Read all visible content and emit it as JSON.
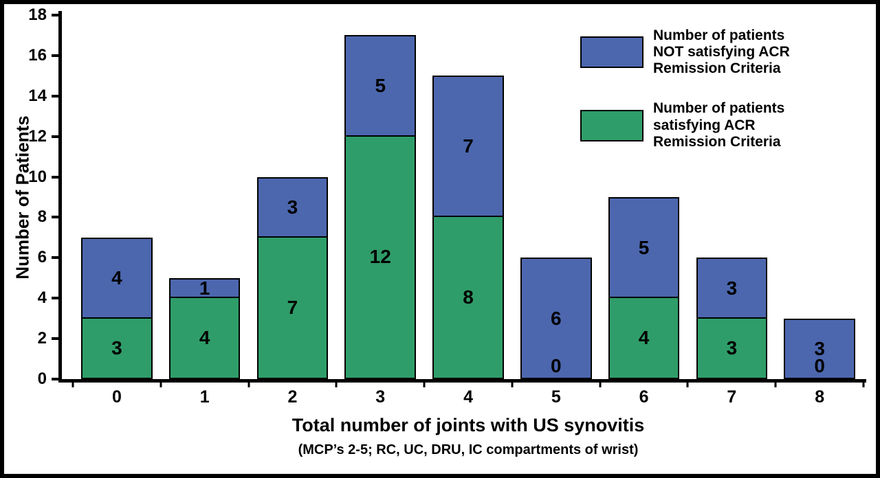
{
  "chart_data": {
    "type": "bar",
    "stacked": true,
    "categories": [
      "0",
      "1",
      "2",
      "3",
      "4",
      "5",
      "6",
      "7",
      "8"
    ],
    "series": [
      {
        "name": "Number of patients satisfying ACR Remission Criteria",
        "color": "#2f9d69",
        "values": [
          3,
          4,
          7,
          12,
          8,
          0,
          4,
          3,
          0
        ]
      },
      {
        "name": "Number of patients NOT satisfying ACR Remission Criteria",
        "color": "#4c67ae",
        "values": [
          4,
          1,
          3,
          5,
          7,
          6,
          5,
          3,
          3
        ]
      }
    ],
    "totals": [
      7,
      5,
      10,
      17,
      15,
      6,
      9,
      6,
      3
    ],
    "ylabel": "Number of Patients",
    "xlabel": "Total number of joints with US synovitis",
    "xlabel_note": "(MCP’s 2-5; RC, UC, DRU, IC compartments of wrist)",
    "ylim": [
      0,
      18
    ],
    "yticks": [
      0,
      2,
      4,
      6,
      8,
      10,
      12,
      14,
      16,
      18
    ],
    "grid": false,
    "legend_position": "top-right",
    "legend": [
      {
        "label": "Number of patients\nNOT satisfying ACR\nRemission Criteria",
        "color": "#4c67ae"
      },
      {
        "label": "Number of patients\nsatisfying ACR\nRemission Criteria",
        "color": "#2f9d69"
      }
    ]
  }
}
